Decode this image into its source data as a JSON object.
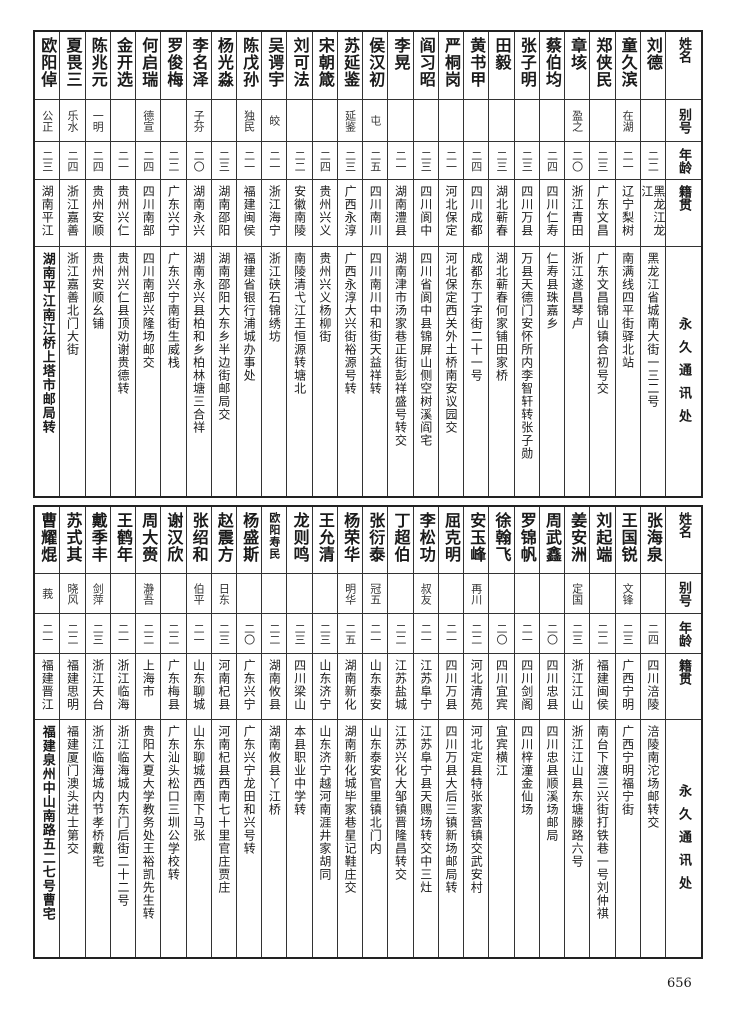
{
  "headers": {
    "name": "姓名",
    "nick": "别号",
    "age": "年龄",
    "native": "籍贯",
    "address": "永久通讯处"
  },
  "top_table": [
    {
      "name": "刘德",
      "nick": "",
      "age": "二二",
      "native": "黑龙江龙江",
      "address": "黑龙江省城南大街一三二号"
    },
    {
      "name": "童久滨",
      "nick": "在湖",
      "age": "二一",
      "native": "辽宁梨树",
      "address": "南满线四平街驿北站"
    },
    {
      "name": "郑侠民",
      "nick": "",
      "age": "二三",
      "native": "广东文昌",
      "address": "广东文昌锦山镇合初号交"
    },
    {
      "name": "章垓",
      "nick": "盈之",
      "age": "二〇",
      "native": "浙江青田",
      "address": "浙江遂昌琴卢"
    },
    {
      "name": "蔡伯均",
      "nick": "",
      "age": "二四",
      "native": "四川仁寿",
      "address": "仁寿县珠嘉乡"
    },
    {
      "name": "张子明",
      "nick": "",
      "age": "二三",
      "native": "四川万县",
      "address": "万县天德门安怀所内李智轩转张子勋"
    },
    {
      "name": "田毅",
      "nick": "",
      "age": "二三",
      "native": "湖北蕲春",
      "address": "湖北蕲春何家铺田家桥"
    },
    {
      "name": "黄书甲",
      "nick": "",
      "age": "二四",
      "native": "四川成都",
      "address": "成都东丁字街二十一号"
    },
    {
      "name": "严桐岗",
      "nick": "",
      "age": "二一",
      "native": "河北保定",
      "address": "河北保定西关外土桥南安议园交"
    },
    {
      "name": "阎习昭",
      "nick": "",
      "age": "二三",
      "native": "四川阆中",
      "address": "四川省阆中县锦屏山侧空树溪阎宅"
    },
    {
      "name": "李晃",
      "nick": "",
      "age": "二一",
      "native": "湖南澧县",
      "address": "湖南津市汤家巷正街彭祥盛号转交"
    },
    {
      "name": "侯汉初",
      "nick": "屯",
      "age": "二五",
      "native": "四川南川",
      "address": "四川南川中和街天益祥转"
    },
    {
      "name": "苏延鉴",
      "nick": "延鉴",
      "age": "二三",
      "native": "广西永淳",
      "address": "广西永淳大兴街裕源号转"
    },
    {
      "name": "宋朝箴",
      "nick": "",
      "age": "二四",
      "native": "贵州兴义",
      "address": "贵州兴义杨柳街"
    },
    {
      "name": "刘可法",
      "nick": "",
      "age": "二二",
      "native": "安徽南陵",
      "address": "南陵清弋江王恒源转塘北"
    },
    {
      "name": "吴谔宇",
      "nick": "皎",
      "age": "二一",
      "native": "浙江海宁",
      "address": "浙江硖石锦绣坊"
    },
    {
      "name": "陈戊孙",
      "nick": "独民",
      "age": "二一",
      "native": "福建闽侯",
      "address": "福建省银行浦城办事处"
    },
    {
      "name": "杨光淼",
      "nick": "",
      "age": "二三",
      "native": "湖南邵阳",
      "address": "湖南邵阳大东乡半边街邮局交"
    },
    {
      "name": "李名泽",
      "nick": "子芬",
      "age": "二〇",
      "native": "湖南永兴",
      "address": "湖南永兴县柏和乡柏林塘三合祥"
    },
    {
      "name": "罗俊梅",
      "nick": "",
      "age": "二二",
      "native": "广东兴宁",
      "address": "广东兴宁南街生威栈"
    },
    {
      "name": "何启瑞",
      "nick": "德宣",
      "age": "二四",
      "native": "四川南部",
      "address": "四川南部兴隆场邮交"
    },
    {
      "name": "金开选",
      "nick": "",
      "age": "二一",
      "native": "贵州兴仁",
      "address": "贵州兴仁县顶劝谢贵德转"
    },
    {
      "name": "陈兆元",
      "nick": "一明",
      "age": "二四",
      "native": "贵州安顺",
      "address": "贵州安顺幺铺"
    },
    {
      "name": "夏畏三",
      "nick": "乐水",
      "age": "二四",
      "native": "浙江嘉善",
      "address": "浙江嘉善北门大街"
    },
    {
      "name": "欧阳倬",
      "nick": "公正",
      "age": "二三",
      "native": "湖南平江",
      "address": "湖南平江南江桥上塔市邮局转"
    }
  ],
  "bottom_table": [
    {
      "name": "张海泉",
      "nick": "",
      "age": "二四",
      "native": "四川涪陵",
      "address": "涪陵南沱场邮转交"
    },
    {
      "name": "王国锐",
      "nick": "文锋",
      "age": "二三",
      "native": "广西宁明",
      "address": "广西宁明福宁街"
    },
    {
      "name": "刘起端",
      "nick": "",
      "age": "二二",
      "native": "福建闽侯",
      "address": "南台下渡三兴街打铁巷一号刘仲祺"
    },
    {
      "name": "姜安洲",
      "nick": "定国",
      "age": "二三",
      "native": "浙江江山",
      "address": "浙江江山县东塘滕路六号"
    },
    {
      "name": "周武鑫",
      "nick": "",
      "age": "二〇",
      "native": "四川忠县",
      "address": "四川忠县顺溪场邮局"
    },
    {
      "name": "罗锦帆",
      "nick": "",
      "age": "二一",
      "native": "四川剑阁",
      "address": "四川梓潼金仙场"
    },
    {
      "name": "徐翰飞",
      "nick": "",
      "age": "二〇",
      "native": "四川宜宾",
      "address": "宜宾横江"
    },
    {
      "name": "安玉峰",
      "nick": "再川",
      "age": "二二",
      "native": "河北清苑",
      "address": "河北定县特张家营镇交武安村"
    },
    {
      "name": "屈克明",
      "nick": "",
      "age": "二一",
      "native": "四川万县",
      "address": "四川万县大后三镇新场邮局转"
    },
    {
      "name": "李松功",
      "nick": "叔友",
      "age": "二一",
      "native": "江苏阜宁",
      "address": "江苏阜宁县天赐场转交中三灶"
    },
    {
      "name": "丁超伯",
      "nick": "",
      "age": "二二",
      "native": "江苏盐城",
      "address": "江苏兴化大邹镇晋隆昌转交"
    },
    {
      "name": "张衍泰",
      "nick": "冠五",
      "age": "二一",
      "native": "山东泰安",
      "address": "山东泰安官里镇北门内"
    },
    {
      "name": "杨荣华",
      "nick": "明华",
      "age": "二五",
      "native": "湖南新化",
      "address": "湖南新化城毕家巷星记鞋庄交"
    },
    {
      "name": "王允清",
      "nick": "",
      "age": "二三",
      "native": "山东济宁",
      "address": "山东济宁越河南涯井家胡同"
    },
    {
      "name": "龙则鸣",
      "nick": "",
      "age": "二三",
      "native": "四川梁山",
      "address": "本县职业中学转"
    },
    {
      "name": "欧阳寿民",
      "nick": "",
      "age": "二二",
      "native": "湖南攸县",
      "address": "湖南攸县丫江桥"
    },
    {
      "name": "杨盛斯",
      "nick": "",
      "age": "二〇",
      "native": "广东兴宁",
      "address": "广东兴宁龙田和兴号转"
    },
    {
      "name": "赵震方",
      "nick": "日东",
      "age": "二三",
      "native": "河南杞县",
      "address": "河南杞县西南七十里官庄贾庄"
    },
    {
      "name": "张绍和",
      "nick": "伯平",
      "age": "二一",
      "native": "山东聊城",
      "address": "山东聊城西南下马张"
    },
    {
      "name": "谢汉欣",
      "nick": "",
      "age": "二二",
      "native": "广东梅县",
      "address": "广东汕头松口三圳公学校转"
    },
    {
      "name": "周大赍",
      "nick": "瀞吾",
      "age": "二二",
      "native": "上海市",
      "address": "贵阳大夏大学教务处王裕凯先生转"
    },
    {
      "name": "王鹤年",
      "nick": "",
      "age": "二一",
      "native": "浙江临海",
      "address": "浙江临海城内东门后街二十二号"
    },
    {
      "name": "戴季丰",
      "nick": "剑萍",
      "age": "二三",
      "native": "浙江天台",
      "address": "浙江临海城内节孝桥戴宅"
    },
    {
      "name": "苏式其",
      "nick": "晓风",
      "age": "二二",
      "native": "福建思明",
      "address": "福建厦门澳头进士第交"
    },
    {
      "name": "曹耀焜",
      "nick": "莪",
      "age": "二一",
      "native": "福建晋江",
      "address": "福建泉州中山南路五二七号曹宅"
    }
  ],
  "page_number": "656"
}
